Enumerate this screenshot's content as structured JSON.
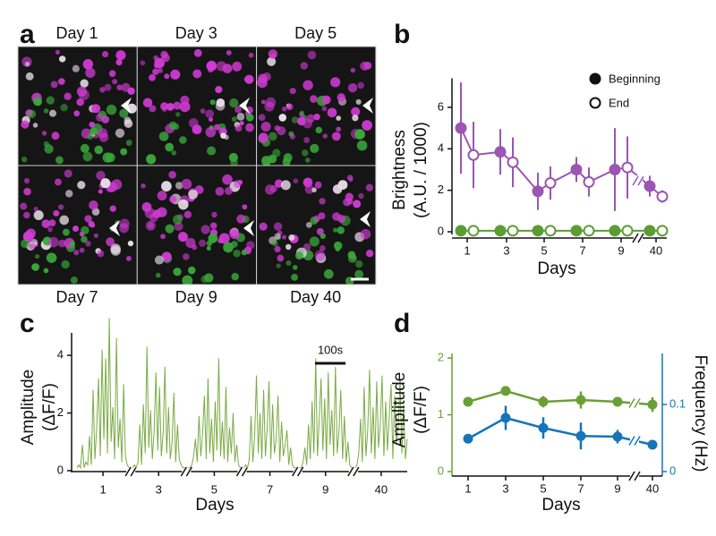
{
  "panel_labels": [
    "a",
    "b",
    "c",
    "d"
  ],
  "image_grid": {
    "labels": [
      "Day 1",
      "Day 3",
      "Day 5",
      "Day 7",
      "Day 9",
      "Day 40"
    ]
  },
  "chart_data": [
    {
      "type": "dodged-line",
      "x_label": "Days",
      "y_label": [
        "Brightness",
        "(A.U. / 1000)"
      ],
      "categories": [
        "1",
        "3",
        "5",
        "7",
        "9",
        "40"
      ],
      "ylim": [
        0,
        7.4
      ],
      "yticks": [
        0,
        2,
        4,
        6
      ],
      "legend": [
        "Beginning",
        "End"
      ],
      "groups": [
        {
          "color": "#9b55b3",
          "series": [
            {
              "values": [
                5.0,
                3.85,
                1.95,
                3.0,
                3.0,
                2.2
              ],
              "errors": [
                2.2,
                1.1,
                0.9,
                0.6,
                2.0,
                0.5
              ]
            },
            {
              "values": [
                3.7,
                3.35,
                2.35,
                2.4,
                3.1,
                1.7
              ],
              "errors": [
                1.6,
                1.2,
                0.8,
                0.7,
                1.5,
                0.3
              ]
            }
          ]
        },
        {
          "color": "#5a9e32",
          "series": [
            {
              "values": [
                0.05,
                0.05,
                0.05,
                0.05,
                0.05,
                0.05
              ]
            },
            {
              "values": [
                0.05,
                0.05,
                0.05,
                0.05,
                0.05,
                0.05
              ]
            }
          ]
        }
      ]
    },
    {
      "type": "trace",
      "color": "#7aab45",
      "x_label": "Days",
      "y_label": [
        "Amplitude",
        "(ΔF/F)"
      ],
      "xlim": [
        0,
        184
      ],
      "xticks": [
        {
          "value": 14.5,
          "label": "1"
        },
        {
          "value": 45.5,
          "label": "3"
        },
        {
          "value": 76.5,
          "label": "5"
        },
        {
          "value": 107.5,
          "label": "7"
        },
        {
          "value": 138.5,
          "label": "9"
        },
        {
          "value": 169.5,
          "label": "40"
        }
      ],
      "ylim": [
        0,
        5.4
      ],
      "yticks": [
        0,
        2,
        4
      ],
      "scale_bar": {
        "label": "100s",
        "length": 17
      },
      "values": [
        0.1,
        0.2,
        0.1,
        0.9,
        0.1,
        0.3,
        0.2,
        1.2,
        0.2,
        2.8,
        0.4,
        1.5,
        3.2,
        0.5,
        4.2,
        1.1,
        3.9,
        0.6,
        5.3,
        1.0,
        2.2,
        0.4,
        4.6,
        0.8,
        1.8,
        0.3,
        3.0,
        0.5,
        0.2,
        0.1,
        null,
        0.1,
        0.2,
        0.1,
        0.3,
        1.6,
        0.2,
        2.3,
        0.6,
        4.3,
        0.8,
        2.1,
        0.4,
        1.4,
        3.4,
        0.7,
        2.9,
        0.5,
        1.3,
        3.6,
        0.6,
        2.2,
        0.4,
        1.0,
        2.7,
        0.3,
        1.6,
        0.4,
        0.2,
        0.1,
        0.1,
        null,
        0.1,
        0.1,
        0.2,
        0.5,
        1.1,
        0.3,
        1.9,
        0.5,
        1.3,
        2.6,
        0.4,
        3.2,
        0.6,
        1.8,
        0.3,
        2.4,
        0.7,
        3.9,
        0.5,
        1.7,
        0.4,
        2.9,
        0.3,
        1.5,
        0.6,
        2.0,
        0.3,
        0.9,
        0.2,
        0.1,
        null,
        0.1,
        0.2,
        0.1,
        0.4,
        1.9,
        0.3,
        1.2,
        3.3,
        0.6,
        2.0,
        0.4,
        2.8,
        0.5,
        1.5,
        3.1,
        0.4,
        2.3,
        0.6,
        1.1,
        2.6,
        0.3,
        1.7,
        0.5,
        0.9,
        1.4,
        0.2,
        0.8,
        0.2,
        0.1,
        0.1,
        null,
        0.1,
        0.1,
        0.3,
        0.8,
        0.2,
        1.6,
        0.4,
        2.4,
        0.6,
        3.9,
        0.5,
        1.8,
        3.2,
        0.7,
        2.5,
        0.4,
        3.4,
        0.9,
        2.1,
        0.5,
        3.6,
        0.6,
        1.4,
        2.8,
        0.4,
        1.9,
        0.3,
        1.0,
        0.2,
        0.1,
        null,
        0.1,
        0.2,
        0.6,
        1.8,
        0.3,
        2.9,
        0.5,
        1.4,
        3.5,
        0.6,
        2.2,
        0.4,
        3.1,
        0.8,
        1.6,
        3.3,
        0.5,
        2.4,
        0.7,
        1.9,
        3.0,
        0.4,
        2.6,
        0.9,
        1.5,
        3.2,
        0.6,
        2.3,
        0.4,
        1.1
      ]
    },
    {
      "type": "dual-line",
      "x_label": "Days",
      "y_label": [
        "Amplitude",
        "(ΔF/F)"
      ],
      "y2_label": "Frequency (Hz)",
      "categories": [
        "1",
        "3",
        "5",
        "7",
        "9",
        "40"
      ],
      "ylim": [
        0,
        2.08
      ],
      "yticks": [
        0,
        1,
        2
      ],
      "y2lim": [
        0,
        0.176
      ],
      "y2ticks": [
        0,
        0.1
      ],
      "series": [
        {
          "color": "#6a9f35",
          "values": [
            1.23,
            1.42,
            1.23,
            1.26,
            1.23,
            1.18
          ],
          "errors": [
            0.08,
            0.08,
            0.1,
            0.15,
            0.07,
            0.13
          ]
        },
        {
          "color": "#1575b8",
          "axis": "y2",
          "values": [
            0.049,
            0.08,
            0.065,
            0.053,
            0.052,
            0.04
          ],
          "errors": [
            0.006,
            0.018,
            0.016,
            0.02,
            0.01,
            0.004
          ]
        }
      ]
    }
  ]
}
